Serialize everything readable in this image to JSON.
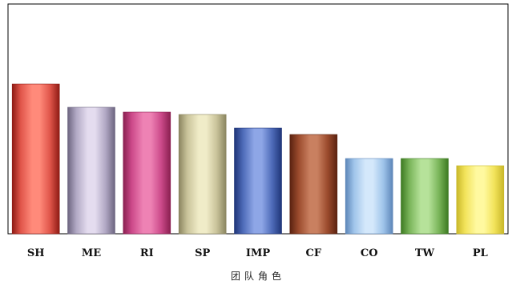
{
  "chart_data": {
    "type": "bar",
    "categories": [
      "SH",
      "ME",
      "RI",
      "SP",
      "IMP",
      "CF",
      "CO",
      "TW",
      "PL"
    ],
    "values": [
      187,
      158,
      152,
      149,
      132,
      124,
      94,
      94,
      85
    ],
    "xlabel": "团队角色",
    "ylabel": "",
    "ylim": [
      0,
      287
    ],
    "grid": false,
    "legend": "none",
    "bar_colors": [
      {
        "dark": "#8e1b14",
        "mid": "#e0554a",
        "light": "#ff8a7a"
      },
      {
        "dark": "#6d6580",
        "mid": "#b1a8c4",
        "light": "#e4dcef"
      },
      {
        "dark": "#8a1f50",
        "mid": "#cc4a8a",
        "light": "#ee82b4"
      },
      {
        "dark": "#8a8560",
        "mid": "#c9c39a",
        "light": "#f0ecc8"
      },
      {
        "dark": "#1f3578",
        "mid": "#4d6ab8",
        "light": "#8ea6e6"
      },
      {
        "dark": "#5a2210",
        "mid": "#9a4a2c",
        "light": "#c98060"
      },
      {
        "dark": "#5d86b8",
        "mid": "#9fc4ea",
        "light": "#d4e8fb"
      },
      {
        "dark": "#3d7a22",
        "mid": "#7ab55a",
        "light": "#b6e29a"
      },
      {
        "dark": "#c9b82a",
        "mid": "#f2e35a",
        "light": "#fff9a0"
      }
    ]
  }
}
